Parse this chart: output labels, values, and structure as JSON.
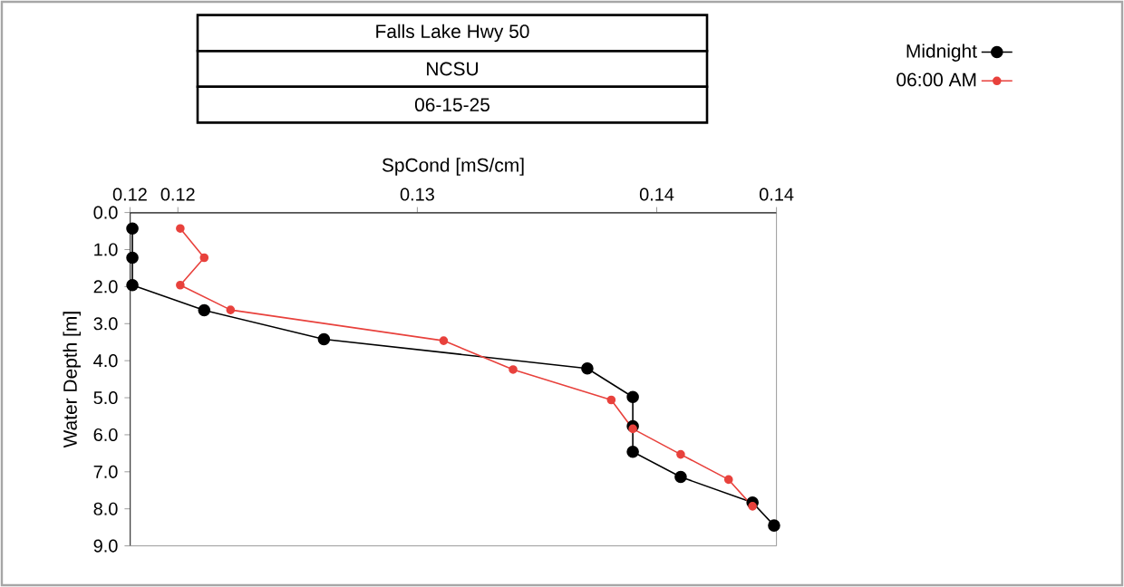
{
  "chart_data": {
    "type": "line",
    "title": "Falls Lake Hwy 50",
    "subtitle": "NCSU",
    "annotations": [
      "06-15-25"
    ],
    "xlabel": "SpCond [mS/cm]",
    "ylabel": "Water Depth [m]",
    "xlim": [
      0.118,
      0.145
    ],
    "xticks": [
      {
        "value": 0.118,
        "label": "0.12"
      },
      0.12,
      0.13,
      0.14,
      {
        "value": 0.145,
        "label": "0.14"
      }
    ],
    "ylim": [
      9,
      0
    ],
    "yticks": [
      {
        "value": 0,
        "label": "0.0"
      },
      {
        "value": 1,
        "label": "1.0"
      },
      {
        "value": 2,
        "label": "2.0"
      },
      {
        "value": 3,
        "label": "3.0"
      },
      {
        "value": 4,
        "label": "4.0"
      },
      {
        "value": 5,
        "label": "5.0"
      },
      {
        "value": 6,
        "label": "6.0"
      },
      {
        "value": 7,
        "label": "7.0"
      },
      {
        "value": 8,
        "label": "8.0"
      },
      {
        "value": 9,
        "label": "9.0"
      }
    ],
    "legend": "top right",
    "marker": "circle",
    "series": [
      {
        "name": "Midnight",
        "color": "#000000",
        "x": [
          0.1181,
          0.1181,
          0.1181,
          0.1211,
          0.1261,
          0.1371,
          0.139,
          0.139,
          0.139,
          0.141,
          0.144,
          0.1449
        ],
        "values": [
          0.43,
          1.22,
          1.96,
          2.64,
          3.42,
          4.21,
          4.98,
          5.77,
          6.46,
          7.14,
          7.83,
          8.45
        ]
      },
      {
        "name": "06:00 AM",
        "color": "#e8413c",
        "x": [
          0.1201,
          0.1211,
          0.1201,
          0.1222,
          0.1311,
          0.134,
          0.1381,
          0.139,
          0.141,
          0.143,
          0.144
        ],
        "values": [
          0.43,
          1.22,
          1.96,
          2.63,
          3.46,
          4.24,
          5.06,
          5.84,
          6.53,
          7.21,
          7.93
        ]
      }
    ]
  }
}
